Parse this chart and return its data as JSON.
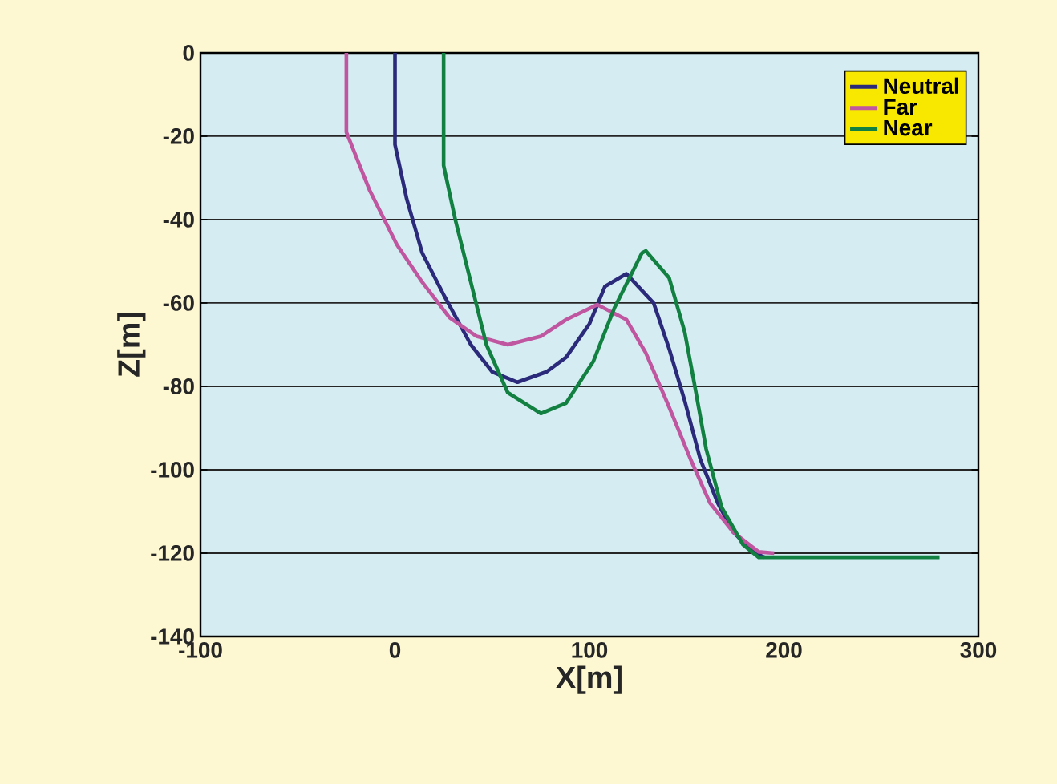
{
  "chart_data": {
    "type": "line",
    "xlabel": "X[m]",
    "ylabel": "Z[m]",
    "xlim": [
      -100,
      300
    ],
    "ylim": [
      -140,
      0
    ],
    "xticks": [
      -100,
      0,
      100,
      200,
      300
    ],
    "yticks": [
      -140,
      -120,
      -100,
      -80,
      -60,
      -40,
      -20,
      0
    ],
    "grid": "y",
    "legend": "top right",
    "marker": "none",
    "line_style": "solid",
    "series": [
      {
        "name": "Neutral",
        "color": "#2b2a7a",
        "x": [
          0,
          0,
          6,
          14,
          25,
          39,
          50,
          63,
          78,
          88,
          100,
          108,
          119,
          120,
          133,
          141,
          149,
          157,
          166,
          174,
          185,
          190
        ],
        "values": [
          0,
          -22,
          -35,
          -48,
          -58,
          -70,
          -76.5,
          -79,
          -76.5,
          -73,
          -65,
          -56,
          -53,
          -53.5,
          -60,
          -71,
          -83.5,
          -97.5,
          -108,
          -115,
          -120,
          -121
        ]
      },
      {
        "name": "Far",
        "color": "#c055a0",
        "x": [
          -25,
          -25,
          -13,
          1,
          14,
          28,
          42,
          58,
          75,
          88,
          104,
          119,
          129,
          141,
          152,
          162,
          174,
          187,
          195
        ],
        "values": [
          0,
          -19,
          -33,
          -46,
          -55,
          -63.5,
          -68,
          -70,
          -68,
          -64,
          -60.4,
          -64,
          -72,
          -85,
          -97.5,
          -108,
          -115,
          -119.7,
          -120
        ]
      },
      {
        "name": "Near",
        "color": "#128040",
        "x": [
          25,
          25,
          31,
          39,
          47,
          58,
          75,
          88,
          102,
          113,
          127,
          129,
          141,
          149,
          154,
          160,
          168,
          179,
          187,
          280
        ],
        "values": [
          0,
          -27,
          -40,
          -55,
          -70,
          -81.5,
          -86.5,
          -84,
          -74,
          -61,
          -48,
          -47.5,
          -54,
          -67,
          -79.5,
          -95,
          -109,
          -118,
          -121,
          -121
        ]
      }
    ]
  }
}
